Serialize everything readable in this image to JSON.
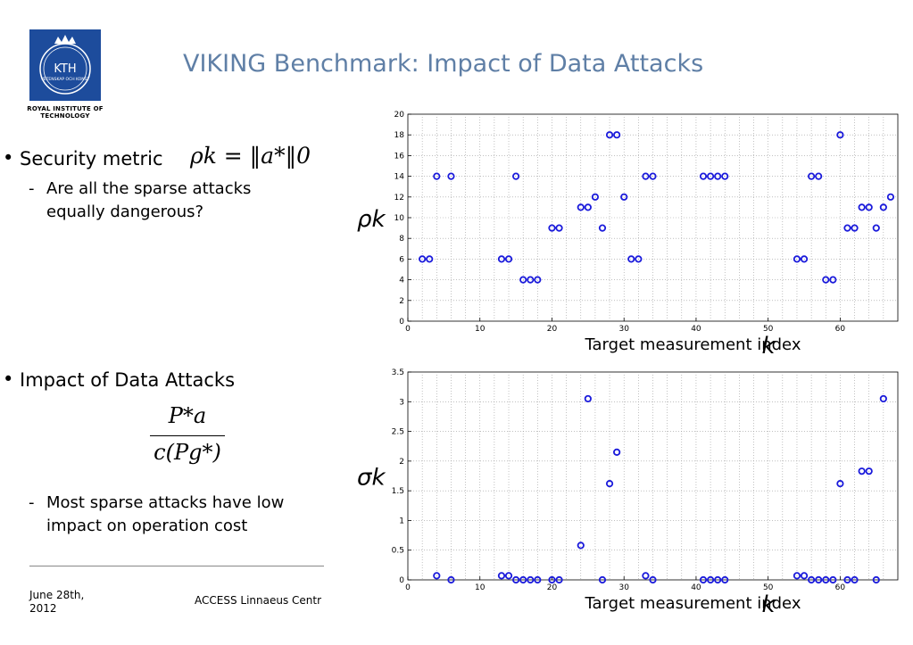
{
  "header": {
    "title": "VIKING Benchmark: Impact of Data Attacks",
    "logo": {
      "wordmark": "KTH",
      "seal_text": "VETENSKAP OCH KONST",
      "institution": "ROYAL INSTITUTE OF TECHNOLOGY"
    }
  },
  "left": {
    "bullet1": "Security metric",
    "formula1": "ρk = ‖a*‖0",
    "sub1_line1": "Are all the sparse attacks",
    "sub1_line2": "equally dangerous?",
    "bullet2": "Impact of Data Attacks",
    "formula2_num": "P*a",
    "formula2_den": "c(Pg*)",
    "sub2_line1": "Most sparse attacks have low",
    "sub2_line2": "impact on operation cost",
    "dash": "-",
    "bullet_marker": "•"
  },
  "footer": {
    "date_line1": "June 28th,",
    "date_line2": "2012",
    "center": "ACCESS Linnaeus Centr"
  },
  "colors": {
    "title": "#5f7fa6",
    "marker": "#1a1adb",
    "logo": "#1d4c9c"
  },
  "chart_data": [
    {
      "type": "scatter",
      "ylabel": "ρk",
      "xlabel": "Target measurement index",
      "xlabel_symbol": "k",
      "xlim": [
        0,
        68
      ],
      "ylim": [
        0,
        20
      ],
      "xticks": [
        0,
        10,
        20,
        30,
        40,
        50,
        60
      ],
      "yticks": [
        0,
        2,
        4,
        6,
        8,
        10,
        12,
        14,
        16,
        18,
        20
      ],
      "grid": true,
      "x": [
        2,
        3,
        4,
        6,
        13,
        14,
        15,
        16,
        17,
        18,
        20,
        21,
        24,
        25,
        26,
        27,
        28,
        29,
        30,
        31,
        32,
        33,
        34,
        41,
        42,
        43,
        44,
        54,
        55,
        56,
        57,
        58,
        59,
        60,
        61,
        62,
        63,
        64,
        65,
        66,
        67
      ],
      "y": [
        6,
        6,
        14,
        14,
        6,
        6,
        14,
        4,
        4,
        4,
        9,
        9,
        11,
        11,
        12,
        9,
        18,
        18,
        12,
        6,
        6,
        14,
        14,
        14,
        14,
        14,
        14,
        6,
        6,
        14,
        14,
        4,
        4,
        18,
        9,
        9,
        11,
        11,
        9,
        11,
        12
      ]
    },
    {
      "type": "scatter",
      "ylabel": "σk",
      "xlabel": "Target measurement index",
      "xlabel_symbol": "k",
      "xlim": [
        0,
        68
      ],
      "ylim": [
        0,
        3.5
      ],
      "xticks": [
        0,
        10,
        20,
        30,
        40,
        50,
        60
      ],
      "yticks": [
        0,
        0.5,
        1,
        1.5,
        2,
        2.5,
        3,
        3.5
      ],
      "grid": true,
      "x": [
        4,
        6,
        13,
        14,
        15,
        16,
        17,
        18,
        20,
        21,
        24,
        25,
        27,
        28,
        29,
        33,
        34,
        41,
        42,
        43,
        44,
        54,
        55,
        56,
        57,
        58,
        59,
        60,
        61,
        62,
        63,
        64,
        65,
        66
      ],
      "y": [
        0.07,
        0,
        0.07,
        0.07,
        0,
        0,
        0,
        0,
        0,
        0,
        0.58,
        3.05,
        0,
        1.62,
        2.15,
        0.07,
        0,
        0,
        0,
        0,
        0,
        0.07,
        0.07,
        0,
        0,
        0,
        0,
        1.62,
        0,
        0,
        1.83,
        1.83,
        0,
        3.05
      ]
    }
  ]
}
